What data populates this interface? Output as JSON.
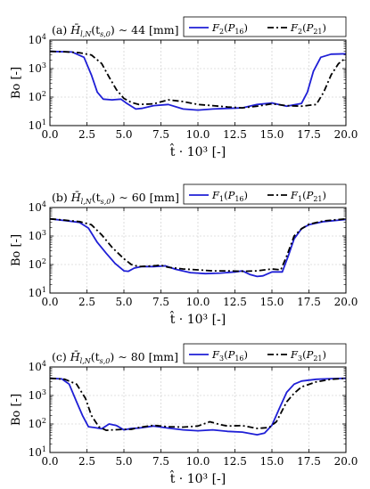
{
  "chart_data": [
    {
      "type": "line",
      "title": "(a) H̄_{l,N}(t_{s,0}) ~ 44 [mm]",
      "title_parts": {
        "label": "(a)",
        "mid": "(t",
        "tail": ") ∼ 44 [mm]"
      },
      "xlabel": "t̂ · 10³ [-]",
      "ylabel": "Bo [-]",
      "xlim": [
        0,
        20
      ],
      "ylim": [
        10,
        10000
      ],
      "yscale": "log",
      "grid": true,
      "legend_position": "top-right",
      "x_ticks": [
        "0.0",
        "2.5",
        "5.0",
        "7.5",
        "10.0",
        "12.5",
        "15.0",
        "17.5",
        "20.0"
      ],
      "series": [
        {
          "name": "F2(P16)",
          "name_parts": {
            "f": "F",
            "fsub": "2",
            "p": "P",
            "psub": "16"
          },
          "color": "#1f1fd6",
          "dash": "solid",
          "x": [
            0,
            1.5,
            2.3,
            2.8,
            3.2,
            3.6,
            4.2,
            4.8,
            5.2,
            5.8,
            6.2,
            7,
            8,
            9,
            10,
            11,
            12,
            13,
            14,
            15,
            16,
            17,
            17.4,
            17.8,
            18.3,
            19,
            20
          ],
          "y": [
            4000,
            3800,
            2500,
            600,
            150,
            85,
            80,
            85,
            60,
            38,
            40,
            50,
            55,
            38,
            35,
            38,
            40,
            42,
            55,
            62,
            48,
            60,
            150,
            800,
            2500,
            3200,
            3300
          ]
        },
        {
          "name": "F2(P21)",
          "name_parts": {
            "f": "F",
            "fsub": "2",
            "p": "P",
            "psub": "21"
          },
          "color": "#000000",
          "dash": "dashdot",
          "x": [
            0,
            1,
            2,
            2.8,
            3.5,
            4,
            4.5,
            5,
            5.5,
            6,
            7,
            8,
            9,
            10,
            11,
            12,
            13,
            14,
            15,
            16,
            17,
            18,
            18.5,
            19,
            19.5,
            20
          ],
          "y": [
            4000,
            3900,
            3600,
            3000,
            1500,
            500,
            180,
            90,
            65,
            55,
            58,
            80,
            70,
            55,
            50,
            45,
            42,
            48,
            58,
            50,
            48,
            55,
            150,
            600,
            1500,
            2400
          ]
        }
      ]
    },
    {
      "type": "line",
      "title": "(b) H̄_{l,N}(t_{s,0}) ~ 60 [mm]",
      "title_parts": {
        "label": "(b)",
        "mid": "(t",
        "tail": ") ∼ 60 [mm]"
      },
      "xlabel": "t̂ · 10³ [-]",
      "ylabel": "Bo [-]",
      "xlim": [
        0,
        20
      ],
      "ylim": [
        10,
        10000
      ],
      "yscale": "log",
      "grid": true,
      "legend_position": "top-right",
      "x_ticks": [
        "0.0",
        "2.5",
        "5.0",
        "7.5",
        "10.0",
        "12.5",
        "15.0",
        "17.5",
        "20.0"
      ],
      "series": [
        {
          "name": "F1(P16)",
          "name_parts": {
            "f": "F",
            "fsub": "1",
            "p": "P",
            "psub": "16"
          },
          "color": "#1f1fd6",
          "dash": "solid",
          "x": [
            0,
            1,
            2,
            2.6,
            3.2,
            3.8,
            4.4,
            5,
            5.3,
            5.7,
            6.2,
            7,
            7.8,
            8.5,
            9.5,
            10.5,
            11.5,
            12.5,
            13,
            13.5,
            14,
            14.4,
            15,
            15.7,
            16.1,
            16.5,
            17,
            17.5,
            18.5,
            20
          ],
          "y": [
            4000,
            3500,
            3000,
            1900,
            600,
            250,
            110,
            60,
            58,
            75,
            85,
            85,
            90,
            68,
            52,
            48,
            50,
            55,
            60,
            45,
            38,
            40,
            55,
            55,
            200,
            800,
            1800,
            2500,
            3200,
            3800
          ]
        },
        {
          "name": "F1(P21)",
          "name_parts": {
            "f": "F",
            "fsub": "1",
            "p": "P",
            "psub": "21"
          },
          "color": "#000000",
          "dash": "dashdot",
          "x": [
            0,
            1,
            2,
            2.8,
            3.5,
            4.2,
            5,
            5.5,
            6,
            7,
            7.5,
            8,
            9,
            10,
            11,
            12,
            13,
            14,
            14.5,
            15,
            15.6,
            16,
            16.5,
            17,
            17.5,
            18.5,
            20
          ],
          "y": [
            4000,
            3600,
            3200,
            2500,
            1100,
            400,
            160,
            100,
            85,
            90,
            95,
            80,
            70,
            65,
            60,
            60,
            58,
            60,
            65,
            70,
            65,
            200,
            1000,
            1800,
            2600,
            3400,
            4000
          ]
        }
      ]
    },
    {
      "type": "line",
      "title": "(c) H̄_{l,N}(t_{s,0}) ~ 80 [mm]",
      "title_parts": {
        "label": "(c)",
        "mid": "(t",
        "tail": ") ∼ 80 [mm]"
      },
      "xlabel": "t̂ · 10³ [-]",
      "ylabel": "Bo [-]",
      "xlim": [
        0,
        20
      ],
      "ylim": [
        10,
        10000
      ],
      "yscale": "log",
      "grid": true,
      "legend_position": "top-right",
      "x_ticks": [
        "0.0",
        "2.5",
        "5.0",
        "7.5",
        "10.0",
        "12.5",
        "15.0",
        "17.5",
        "20.0"
      ],
      "series": [
        {
          "name": "F3(P16)",
          "name_parts": {
            "f": "F",
            "fsub": "3",
            "p": "P",
            "psub": "16"
          },
          "color": "#1f1fd6",
          "dash": "solid",
          "x": [
            0,
            0.8,
            1.3,
            1.8,
            2.2,
            2.6,
            3,
            3.5,
            4,
            4.5,
            5,
            5.5,
            6,
            7,
            8,
            9,
            10,
            11,
            12,
            13,
            14,
            14.5,
            15,
            15.5,
            16,
            16.5,
            17,
            18,
            19,
            20
          ],
          "y": [
            4000,
            3800,
            2500,
            600,
            200,
            80,
            75,
            68,
            100,
            88,
            62,
            70,
            72,
            85,
            72,
            62,
            58,
            62,
            55,
            52,
            42,
            48,
            90,
            350,
            1300,
            2500,
            3200,
            3700,
            3900,
            4000
          ]
        },
        {
          "name": "F3(P21)",
          "name_parts": {
            "f": "F",
            "fsub": "3",
            "p": "P",
            "psub": "21"
          },
          "color": "#000000",
          "dash": "dashdot",
          "x": [
            0,
            1,
            1.8,
            2.4,
            2.8,
            3.3,
            3.8,
            4.3,
            5,
            5.5,
            6,
            7,
            8,
            9,
            10,
            10.8,
            11.5,
            12,
            13,
            14,
            14.8,
            15.3,
            16,
            16.5,
            17,
            18,
            19,
            20
          ],
          "y": [
            4000,
            3700,
            2500,
            800,
            200,
            80,
            60,
            62,
            65,
            65,
            75,
            90,
            80,
            78,
            85,
            120,
            95,
            85,
            88,
            70,
            75,
            120,
            600,
            1200,
            2000,
            3000,
            3700,
            4000
          ]
        }
      ]
    }
  ]
}
